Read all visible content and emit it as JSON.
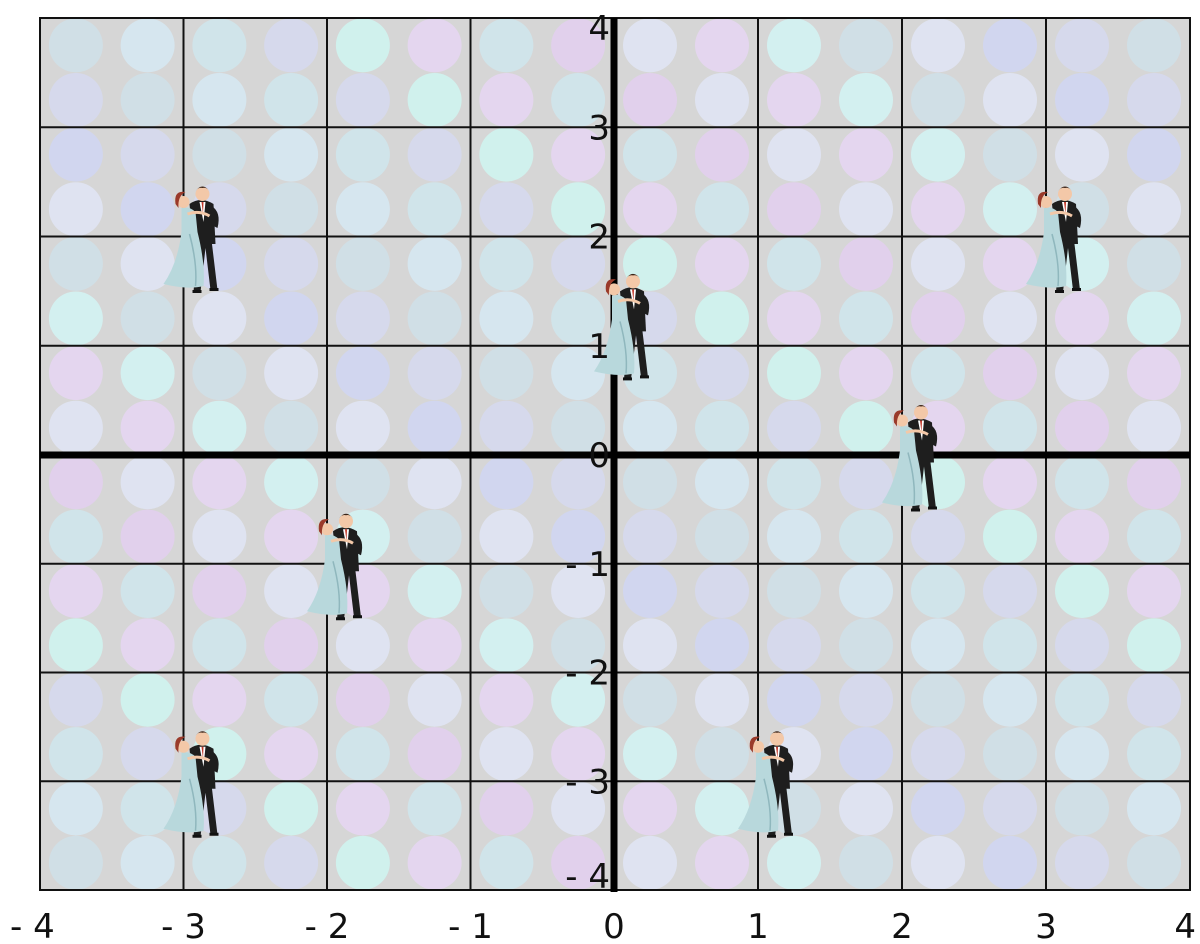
{
  "title": "",
  "grid": {
    "x_range": [
      -4,
      4
    ],
    "y_range": [
      -4,
      4
    ],
    "major_step": 1,
    "minor_step": 0.5,
    "gridlines": true,
    "x_ticks": [
      {
        "value": -4,
        "label": "- 4"
      },
      {
        "value": -3,
        "label": "- 3"
      },
      {
        "value": -2,
        "label": "- 2"
      },
      {
        "value": -1,
        "label": "- 1"
      },
      {
        "value": 0,
        "label": "0"
      },
      {
        "value": 1,
        "label": "1"
      },
      {
        "value": 2,
        "label": "2"
      },
      {
        "value": 3,
        "label": "3"
      },
      {
        "value": 4,
        "label": "4"
      }
    ],
    "y_ticks": [
      {
        "value": 4,
        "label": "4"
      },
      {
        "value": 3,
        "label": "3"
      },
      {
        "value": 2,
        "label": "2"
      },
      {
        "value": 1,
        "label": "1"
      },
      {
        "value": 0,
        "label": "0"
      },
      {
        "value": -1,
        "label": "- 1"
      },
      {
        "value": -2,
        "label": "- 2"
      },
      {
        "value": -3,
        "label": "- 3"
      },
      {
        "value": -4,
        "label": "- 4"
      }
    ]
  },
  "background": {
    "plot_color": "#d6d6d6",
    "dot_colors": [
      "#cfe0e8",
      "#e2cfee",
      "#d6d9ee",
      "#d3f3f3",
      "#cfe6ec",
      "#d0d6f2",
      "#e6d6f2",
      "#d6e8f2",
      "#e0e4f4",
      "#cff4f0"
    ]
  },
  "dancers": [
    {
      "x": -3,
      "y": 2
    },
    {
      "x": 0,
      "y": 1.2
    },
    {
      "x": 3,
      "y": 2
    },
    {
      "x": 2,
      "y": 0
    },
    {
      "x": -2,
      "y": -1
    },
    {
      "x": -3,
      "y": -3
    },
    {
      "x": 1,
      "y": -3
    }
  ],
  "colors": {
    "grid_line": "#111111",
    "axis_line": "#000000",
    "dress": "#b8d8dc",
    "hair": "#9a3a2a",
    "suit": "#1e1e1e",
    "skin": "#f3c8a8"
  },
  "icons": {
    "dancer": "dancing-couple-icon"
  }
}
